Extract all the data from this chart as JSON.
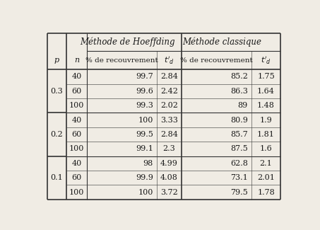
{
  "rows": [
    [
      "0.3",
      "40",
      "99.7",
      "2.84",
      "85.2",
      "1.75"
    ],
    [
      "",
      "60",
      "99.6",
      "2.42",
      "86.3",
      "1.64"
    ],
    [
      "",
      "100",
      "99.3",
      "2.02",
      "89",
      "1.48"
    ],
    [
      "0.2",
      "40",
      "100",
      "3.33",
      "80.9",
      "1.9"
    ],
    [
      "",
      "60",
      "99.5",
      "2.84",
      "85.7",
      "1.81"
    ],
    [
      "",
      "100",
      "99.1",
      "2.3",
      "87.5",
      "1.6"
    ],
    [
      "0.1",
      "40",
      "98",
      "4.99",
      "62.8",
      "2.1"
    ],
    [
      "",
      "60",
      "99.9",
      "4.08",
      "73.1",
      "2.01"
    ],
    [
      "",
      "100",
      "100",
      "3.72",
      "79.5",
      "1.78"
    ]
  ],
  "p_groups": [
    {
      "label": "0.3",
      "rows": [
        0,
        1,
        2
      ]
    },
    {
      "label": "0.2",
      "rows": [
        3,
        4,
        5
      ]
    },
    {
      "label": "0.1",
      "rows": [
        6,
        7,
        8
      ]
    }
  ],
  "bg_color": "#f0ece4",
  "text_color": "#1a1a1a",
  "line_color": "#333333",
  "font_family": "DejaVu Serif",
  "font_size": 8.0,
  "header_font_size": 8.5
}
